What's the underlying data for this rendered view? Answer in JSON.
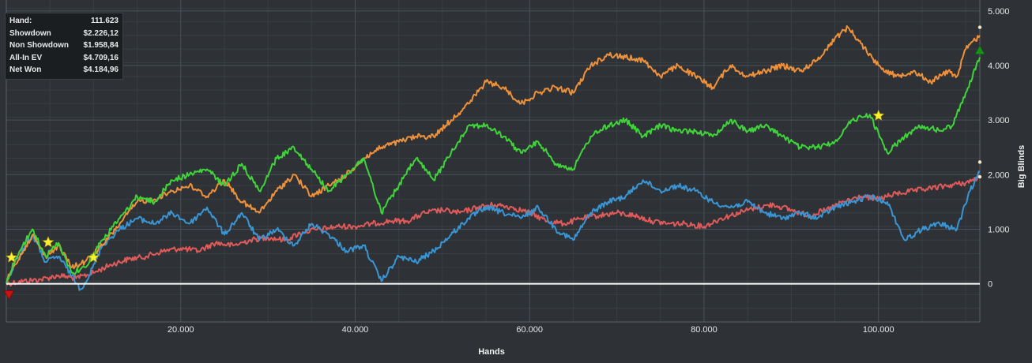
{
  "stats": [
    {
      "label": "Hand:",
      "value": "111.623"
    },
    {
      "label": "Showdown",
      "value": "$2.226,12"
    },
    {
      "label": "Non Showdown",
      "value": "$1.958,84"
    },
    {
      "label": "All-In EV",
      "value": "$4.709,16"
    },
    {
      "label": "Net Won",
      "value": "$4.184,96"
    }
  ],
  "chart_data": {
    "type": "line",
    "xlabel": "Hands",
    "ylabel": "Big Blinds",
    "xlim": [
      0,
      111623
    ],
    "ylim": [
      -700,
      5200
    ],
    "x_ticks": [
      {
        "value": 20000,
        "label": "20.000"
      },
      {
        "value": 40000,
        "label": "40.000"
      },
      {
        "value": 60000,
        "label": "60.000"
      },
      {
        "value": 80000,
        "label": "80.000"
      },
      {
        "value": 100000,
        "label": "100.000"
      }
    ],
    "y_ticks": [
      {
        "value": 0,
        "label": "0"
      },
      {
        "value": 1000,
        "label": "1.000"
      },
      {
        "value": 2000,
        "label": "2.000"
      },
      {
        "value": 3000,
        "label": "3.000"
      },
      {
        "value": 4000,
        "label": "4.000"
      },
      {
        "value": 5000,
        "label": "5.000"
      }
    ],
    "grid": true,
    "series": [
      {
        "color": "#f0913a",
        "x": [
          0,
          1000,
          3000,
          4500,
          6000,
          7500,
          9000,
          11000,
          13000,
          15000,
          17000,
          19000,
          21000,
          23000,
          25000,
          27000,
          29000,
          31000,
          33000,
          35000,
          37000,
          39000,
          41000,
          43000,
          45000,
          47000,
          49000,
          51000,
          53000,
          55000,
          57000,
          59000,
          61000,
          63000,
          65000,
          67000,
          69000,
          71000,
          73000,
          75000,
          77000,
          79000,
          81000,
          83000,
          85000,
          87000,
          89000,
          91000,
          93000,
          95000,
          96500,
          98000,
          100000,
          102000,
          104000,
          106000,
          108000,
          109000,
          110000,
          111623
        ],
        "y": [
          50,
          350,
          900,
          500,
          700,
          300,
          400,
          700,
          1100,
          1500,
          1550,
          1700,
          1800,
          1600,
          1900,
          1500,
          1300,
          1700,
          2000,
          1600,
          1800,
          2000,
          2300,
          2500,
          2600,
          2700,
          2700,
          3000,
          3300,
          3700,
          3600,
          3300,
          3500,
          3600,
          3500,
          4000,
          4200,
          4150,
          4100,
          3800,
          4000,
          3800,
          3600,
          4000,
          3800,
          3900,
          4000,
          3900,
          4100,
          4500,
          4700,
          4400,
          4000,
          3800,
          3900,
          3700,
          3900,
          3800,
          4300,
          4550
        ]
      },
      {
        "color": "#3fd43a",
        "x": [
          0,
          1000,
          3000,
          4500,
          6000,
          7500,
          9000,
          11000,
          13000,
          15000,
          17000,
          19000,
          21000,
          23000,
          25000,
          27000,
          29000,
          31000,
          33000,
          35000,
          37000,
          39000,
          41000,
          43000,
          45000,
          47000,
          49000,
          51000,
          53000,
          55000,
          57000,
          59000,
          61000,
          63000,
          65000,
          67000,
          69000,
          71000,
          73000,
          75000,
          77000,
          79000,
          81000,
          83000,
          85000,
          87000,
          89000,
          91000,
          93000,
          95000,
          97000,
          99000,
          101000,
          103000,
          105000,
          107000,
          108500,
          110000,
          111623
        ],
        "y": [
          0,
          450,
          1000,
          500,
          750,
          200,
          300,
          800,
          1200,
          1600,
          1500,
          1900,
          2000,
          2100,
          1800,
          2200,
          1700,
          2300,
          2500,
          2100,
          1700,
          2000,
          2300,
          1300,
          1800,
          2300,
          1900,
          2400,
          2900,
          2900,
          2700,
          2400,
          2600,
          2200,
          2100,
          2700,
          2900,
          3000,
          2700,
          2900,
          2800,
          2800,
          2700,
          3000,
          2800,
          2900,
          2700,
          2500,
          2500,
          2600,
          3000,
          3100,
          2400,
          2700,
          2900,
          2800,
          2900,
          3500,
          4150
        ]
      },
      {
        "color": "#3a95d4",
        "x": [
          0,
          1000,
          3000,
          4500,
          6000,
          7500,
          8500,
          9500,
          11000,
          13000,
          15000,
          17000,
          19000,
          21000,
          23000,
          25000,
          27000,
          29000,
          31000,
          33000,
          35000,
          37000,
          39000,
          41000,
          43000,
          45000,
          47000,
          49000,
          51000,
          53000,
          55000,
          57000,
          59000,
          61000,
          63000,
          65000,
          67000,
          69000,
          71000,
          73000,
          75000,
          77000,
          79000,
          81000,
          83000,
          85000,
          87000,
          89000,
          91000,
          93000,
          95000,
          97000,
          99000,
          101000,
          103000,
          105000,
          107000,
          109000,
          110500,
          111623
        ],
        "y": [
          0,
          400,
          900,
          400,
          500,
          150,
          -100,
          150,
          700,
          1000,
          1200,
          1100,
          1300,
          1100,
          1400,
          900,
          1300,
          800,
          1000,
          700,
          1100,
          900,
          600,
          700,
          50,
          500,
          400,
          600,
          900,
          1200,
          1400,
          1300,
          1200,
          1400,
          1000,
          800,
          1300,
          1500,
          1600,
          1900,
          1700,
          1800,
          1700,
          1500,
          1400,
          1500,
          1300,
          1200,
          1300,
          1200,
          1400,
          1500,
          1600,
          1500,
          800,
          1000,
          1100,
          1000,
          1700,
          2050
        ]
      },
      {
        "color": "#e05a5a",
        "x": [
          0,
          2000,
          4000,
          6000,
          8000,
          10000,
          12000,
          14000,
          16000,
          18000,
          20000,
          22000,
          24000,
          26000,
          28000,
          30000,
          32000,
          34000,
          36000,
          38000,
          40000,
          42000,
          44000,
          46000,
          48000,
          50000,
          52000,
          54000,
          56000,
          58000,
          60000,
          62000,
          64000,
          66000,
          68000,
          70000,
          72000,
          74000,
          76000,
          78000,
          80000,
          82000,
          84000,
          86000,
          88000,
          90000,
          92000,
          94000,
          96000,
          98000,
          100000,
          102000,
          104000,
          106000,
          108000,
          110000,
          111623
        ],
        "y": [
          0,
          50,
          80,
          150,
          100,
          200,
          350,
          450,
          500,
          600,
          650,
          600,
          750,
          700,
          800,
          850,
          800,
          950,
          1000,
          1050,
          1050,
          1100,
          1150,
          1150,
          1300,
          1350,
          1300,
          1400,
          1450,
          1400,
          1300,
          1150,
          1100,
          1200,
          1250,
          1300,
          1250,
          1150,
          1100,
          1100,
          1050,
          1200,
          1300,
          1400,
          1450,
          1350,
          1250,
          1350,
          1500,
          1600,
          1550,
          1650,
          1700,
          1750,
          1800,
          1850,
          1950
        ]
      }
    ],
    "markers": [
      {
        "type": "star",
        "color": "#ffee33",
        "x": 600,
        "y": 480
      },
      {
        "type": "star",
        "color": "#ffee33",
        "x": 4800,
        "y": 760
      },
      {
        "type": "star",
        "color": "#ffee33",
        "x": 10000,
        "y": 480
      },
      {
        "type": "star",
        "color": "#ffee33",
        "x": 100000,
        "y": 3080
      },
      {
        "type": "down-triangle",
        "color": "#cc1111",
        "x": 300,
        "y": -200
      },
      {
        "type": "up-triangle",
        "color": "#1a8f1a",
        "x": 111623,
        "y": 4280
      }
    ],
    "end_dots": [
      {
        "color": "#f5e6c8",
        "x": 111623,
        "y": 4700
      },
      {
        "color": "#f5e6c8",
        "x": 111623,
        "y": 2230
      },
      {
        "color": "#f5e6c8",
        "x": 111623,
        "y": 1960
      }
    ]
  }
}
